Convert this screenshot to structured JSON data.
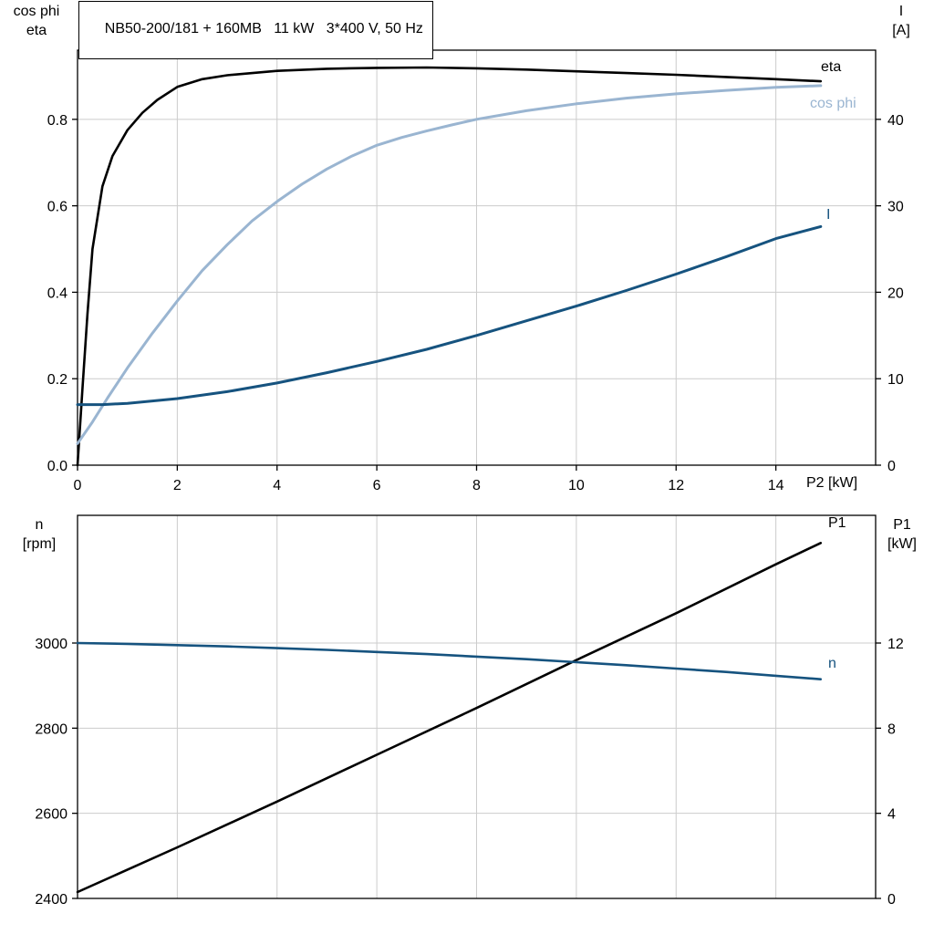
{
  "title": "NB50-200/181 + 160MB   11 kW   3*400 V, 50 Hz",
  "colors": {
    "eta": "#000000",
    "cos_phi": "#9ab5d1",
    "current": "#16537f",
    "grid": "#cccccc",
    "axis": "#000000"
  },
  "axes_labels": {
    "top_left": [
      "cos phi",
      "eta"
    ],
    "top_right": [
      "I",
      "[A]"
    ],
    "x_axis": "P2 [kW]",
    "bottom_left": [
      "n",
      "[rpm]"
    ],
    "bottom_right": [
      "P1",
      "[kW]"
    ]
  },
  "curve_labels": {
    "eta": "eta",
    "cos_phi": "cos phi",
    "current": "I",
    "p1": "P1",
    "n": "n"
  },
  "chart_data": [
    {
      "type": "line",
      "title": "NB50-200/181 + 160MB   11 kW   3*400 V, 50 Hz",
      "xlabel": "P2 [kW]",
      "xlim": [
        0,
        16
      ],
      "x_tick_labels": [
        "0",
        "2",
        "4",
        "6",
        "8",
        "10",
        "12",
        "14"
      ],
      "show_x_ticks": true,
      "grid": true,
      "left_axis": {
        "label": "cos phi / eta",
        "lim": [
          0,
          0.96
        ],
        "tick_labels": [
          "0.0",
          "0.2",
          "0.4",
          "0.6",
          "0.8"
        ]
      },
      "right_axis": {
        "label": "I [A]",
        "lim": [
          0,
          48
        ],
        "tick_labels": [
          "0",
          "10",
          "20",
          "30",
          "40"
        ]
      },
      "series": [
        {
          "name": "eta",
          "axis": "left",
          "color": "#000000",
          "width": 2.6,
          "x": [
            0,
            0.1,
            0.2,
            0.3,
            0.5,
            0.7,
            1,
            1.3,
            1.6,
            2,
            2.5,
            3,
            4,
            5,
            6,
            7,
            8,
            9,
            10,
            11,
            12,
            13,
            14,
            14.9
          ],
          "y": [
            0,
            0.18,
            0.35,
            0.5,
            0.645,
            0.715,
            0.775,
            0.815,
            0.845,
            0.875,
            0.893,
            0.902,
            0.912,
            0.917,
            0.919,
            0.92,
            0.918,
            0.915,
            0.911,
            0.907,
            0.903,
            0.898,
            0.893,
            0.888
          ]
        },
        {
          "name": "cos phi",
          "axis": "left",
          "color": "#9ab5d1",
          "width": 3,
          "x": [
            0,
            0.3,
            0.6,
            1,
            1.5,
            2,
            2.5,
            3,
            3.5,
            4,
            4.5,
            5,
            5.5,
            6,
            6.5,
            7,
            7.5,
            8,
            9,
            10,
            11,
            12,
            13,
            14,
            14.9
          ],
          "y": [
            0.05,
            0.1,
            0.155,
            0.225,
            0.305,
            0.38,
            0.45,
            0.51,
            0.565,
            0.61,
            0.65,
            0.685,
            0.715,
            0.74,
            0.758,
            0.773,
            0.787,
            0.8,
            0.82,
            0.836,
            0.849,
            0.859,
            0.867,
            0.874,
            0.878
          ]
        },
        {
          "name": "I",
          "axis": "right",
          "color": "#16537f",
          "width": 3,
          "x": [
            0,
            0.5,
            1,
            2,
            3,
            4,
            5,
            6,
            7,
            8,
            9,
            10,
            11,
            12,
            13,
            14,
            14.9
          ],
          "y": [
            7,
            7,
            7.15,
            7.7,
            8.5,
            9.5,
            10.7,
            12,
            13.4,
            15,
            16.7,
            18.4,
            20.2,
            22.1,
            24.1,
            26.2,
            27.6
          ]
        }
      ]
    },
    {
      "type": "line",
      "title": "",
      "xlabel": "",
      "xlim": [
        0,
        16
      ],
      "x_tick_labels": [
        "0",
        "2",
        "4",
        "6",
        "8",
        "10",
        "12",
        "14"
      ],
      "show_x_ticks": false,
      "grid": true,
      "left_axis": {
        "label": "n [rpm]",
        "lim": [
          2400,
          3300
        ],
        "tick_labels": [
          "2400",
          "2600",
          "2800",
          "3000"
        ]
      },
      "right_axis": {
        "label": "P1 [kW]",
        "lim": [
          0,
          18
        ],
        "tick_labels": [
          "0",
          "4",
          "8",
          "12"
        ]
      },
      "series": [
        {
          "name": "P1",
          "axis": "right",
          "color": "#000000",
          "width": 2.6,
          "x": [
            0,
            2,
            4,
            6,
            8,
            10,
            12,
            14,
            14.9
          ],
          "y": [
            0.3,
            2.4,
            4.55,
            6.75,
            8.95,
            11.2,
            13.4,
            15.7,
            16.7
          ]
        },
        {
          "name": "n",
          "axis": "left",
          "color": "#16537f",
          "width": 2.6,
          "x": [
            0,
            1,
            2,
            3,
            4,
            5,
            6,
            7,
            8,
            9,
            10,
            11,
            12,
            13,
            14,
            14.9
          ],
          "y": [
            3000,
            2998,
            2995,
            2992,
            2988,
            2984,
            2979,
            2974,
            2968,
            2962,
            2955,
            2948,
            2940,
            2932,
            2923,
            2915
          ]
        }
      ]
    }
  ]
}
